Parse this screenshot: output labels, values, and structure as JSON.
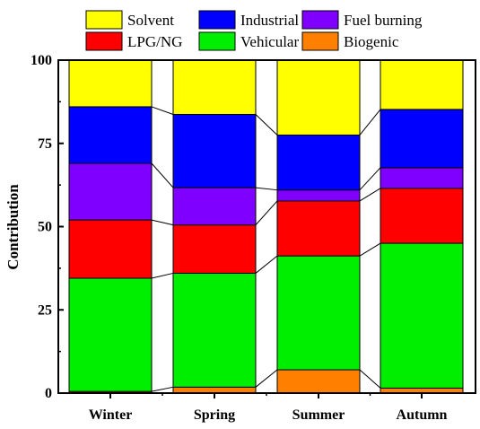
{
  "chart_data": {
    "type": "bar",
    "stacked": true,
    "categories": [
      "Winter",
      "Spring",
      "Summer",
      "Autumn"
    ],
    "series": [
      {
        "name": "Biogenic",
        "color": "#ff8000",
        "values": [
          0.5,
          1.8,
          7.0,
          1.5
        ]
      },
      {
        "name": "Vehicular",
        "color": "#00ee00",
        "values": [
          34.0,
          34.2,
          34.2,
          43.5
        ]
      },
      {
        "name": "LPG/NG",
        "color": "#ff0000",
        "values": [
          17.5,
          14.5,
          16.5,
          16.5
        ]
      },
      {
        "name": "Fuel burning",
        "color": "#8000ff",
        "values": [
          17.0,
          11.2,
          3.3,
          6.2
        ]
      },
      {
        "name": "Industrial",
        "color": "#0000ff",
        "values": [
          17.0,
          22.0,
          16.5,
          17.5
        ]
      },
      {
        "name": "Solvent",
        "color": "#ffff00",
        "values": [
          14.0,
          16.3,
          22.5,
          14.8
        ]
      }
    ],
    "legend_order": [
      "Solvent",
      "Industrial",
      "Fuel burning",
      "LPG/NG",
      "Vehicular",
      "Biogenic"
    ],
    "legend_position": "top",
    "xlabel": "",
    "ylabel": "Contribution",
    "ylim": [
      0,
      100
    ],
    "yticks": [
      0,
      25,
      50,
      75,
      100
    ],
    "connector_lines": true,
    "grid": false
  }
}
